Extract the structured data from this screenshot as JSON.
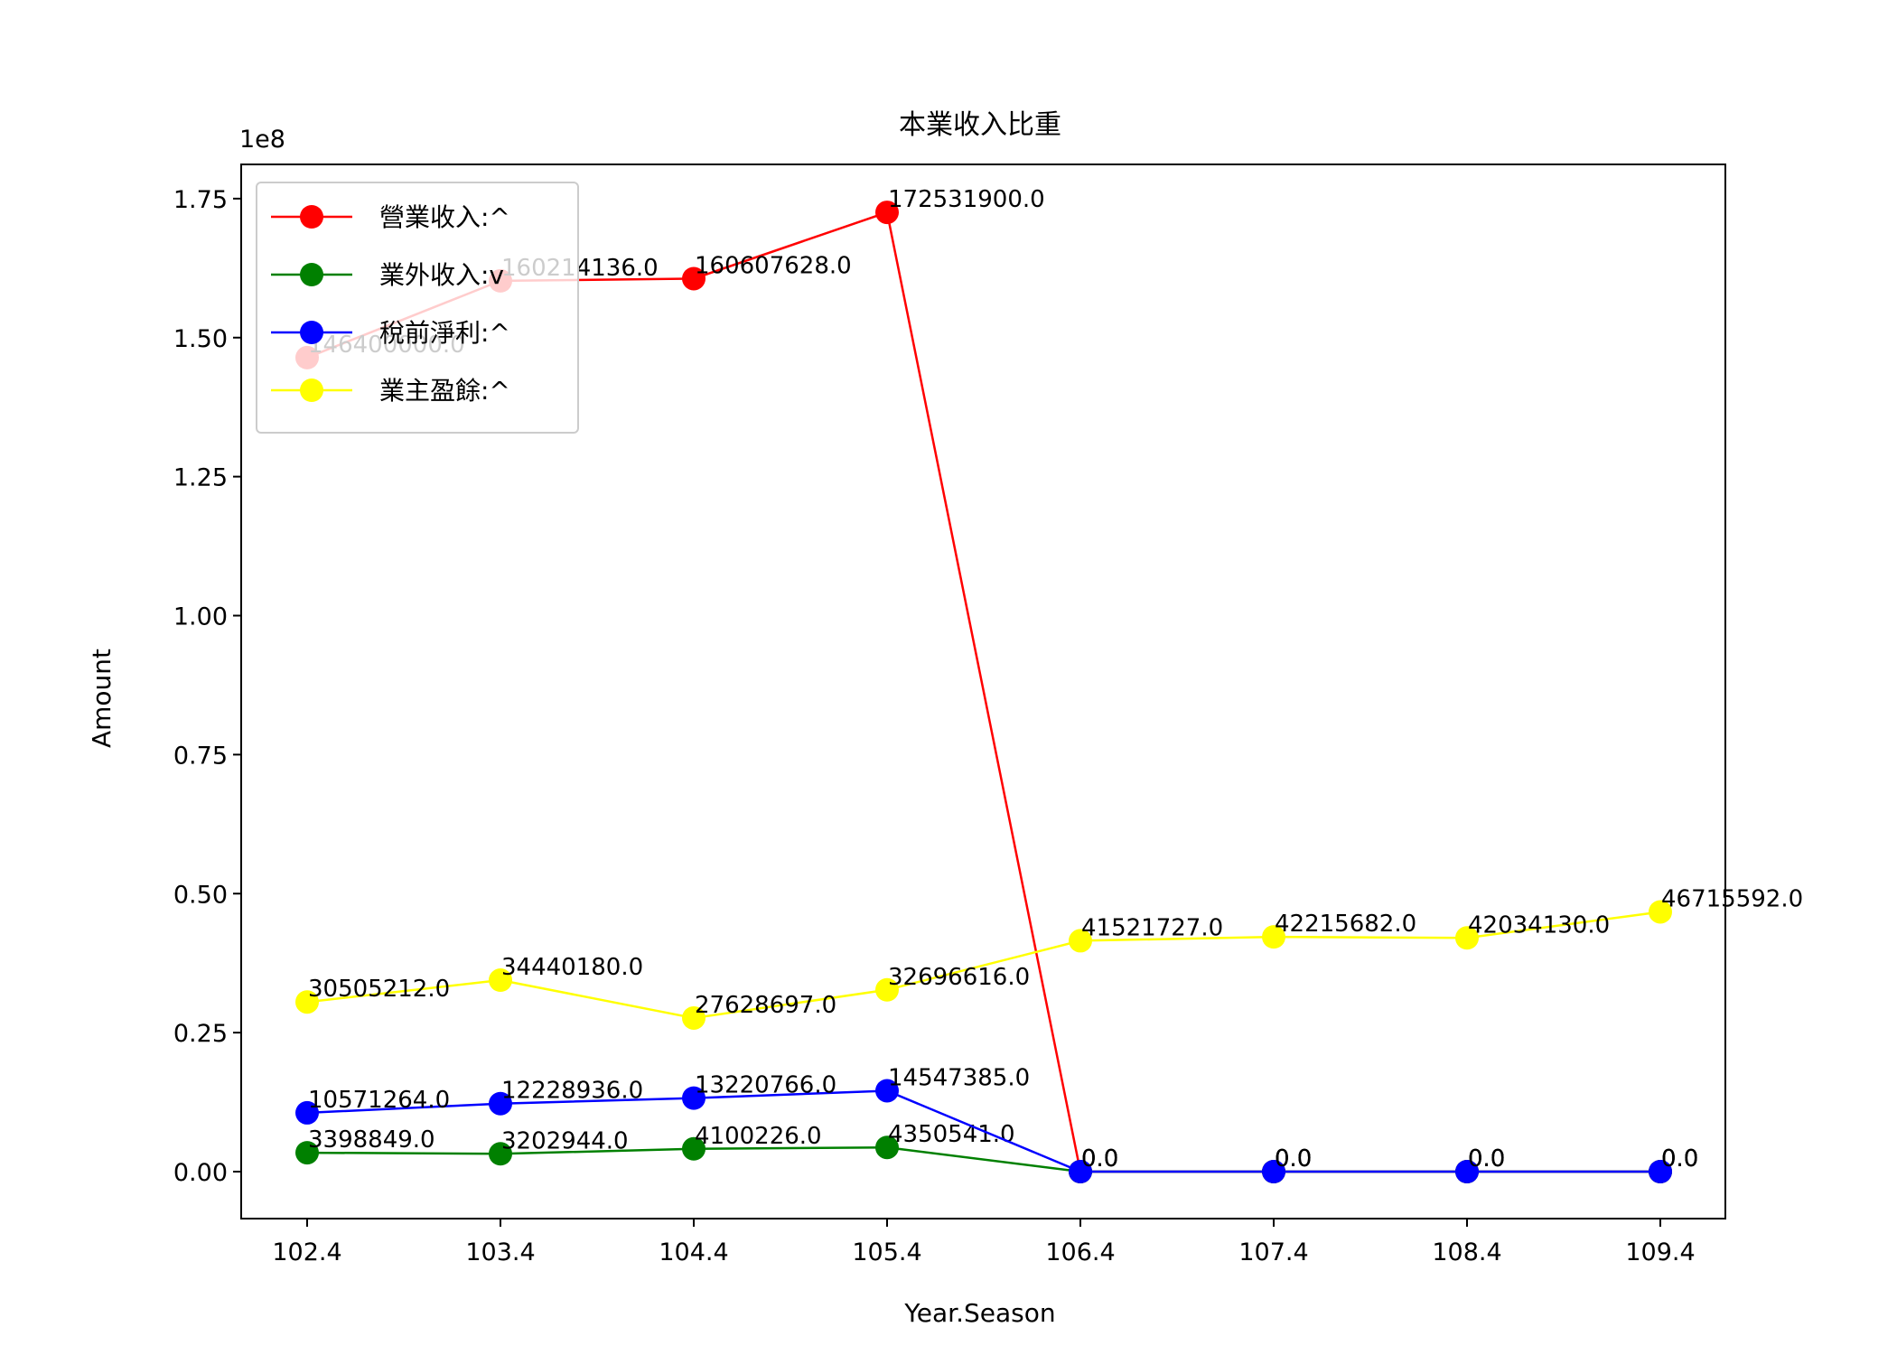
{
  "chart_data": {
    "type": "line",
    "title": "本業收入比重",
    "xlabel": "Year.Season",
    "ylabel": "Amount",
    "y_exponent_label": "1e8",
    "y_scale": 100000000,
    "ylim": [
      -15000000,
      181000000
    ],
    "yticks": [
      0,
      25000000,
      50000000,
      75000000,
      100000000,
      125000000,
      150000000,
      175000000
    ],
    "ytick_labels": [
      "0.00",
      "0.25",
      "0.50",
      "0.75",
      "1.00",
      "1.25",
      "1.50",
      "1.75"
    ],
    "categories": [
      "102.4",
      "103.4",
      "104.4",
      "105.4",
      "106.4",
      "107.4",
      "108.4",
      "109.4"
    ],
    "legend_position": "top-left",
    "grid": false,
    "series": [
      {
        "name": "營業收入:^",
        "color": "#ff0000",
        "values": [
          146400000,
          160214136,
          160607628,
          172531900,
          0,
          0,
          0,
          0
        ],
        "labels": [
          "146400000.0",
          "160214136.0",
          "160607628.0",
          "172531900.0",
          "0.0",
          "0.0",
          "0.0",
          "0.0"
        ]
      },
      {
        "name": "業外收入:v",
        "color": "#008000",
        "values": [
          3398849,
          3202944,
          4100226,
          4350541,
          0,
          0,
          0,
          0
        ],
        "labels": [
          "3398849.0",
          "3202944.0",
          "4100226.0",
          "4350541.0",
          "0.0",
          "0.0",
          "0.0",
          "0.0"
        ]
      },
      {
        "name": "稅前淨利:^",
        "color": "#0000ff",
        "values": [
          10571264,
          12228936,
          13220766,
          14547385,
          0,
          0,
          0,
          0
        ],
        "labels": [
          "10571264.0",
          "12228936.0",
          "13220766.0",
          "14547385.0",
          "0.0",
          "0.0",
          "0.0",
          "0.0"
        ]
      },
      {
        "name": "業主盈餘:^",
        "color": "#ffff00",
        "values": [
          30505212,
          34440180,
          27628697,
          32696616,
          41521727,
          42215682,
          42034130,
          46715592
        ],
        "labels": [
          "30505212.0",
          "34440180.0",
          "27628697.0",
          "32696616.0",
          "41521727.0",
          "42215682.0",
          "42034130.0",
          "46715592.0"
        ]
      }
    ]
  }
}
